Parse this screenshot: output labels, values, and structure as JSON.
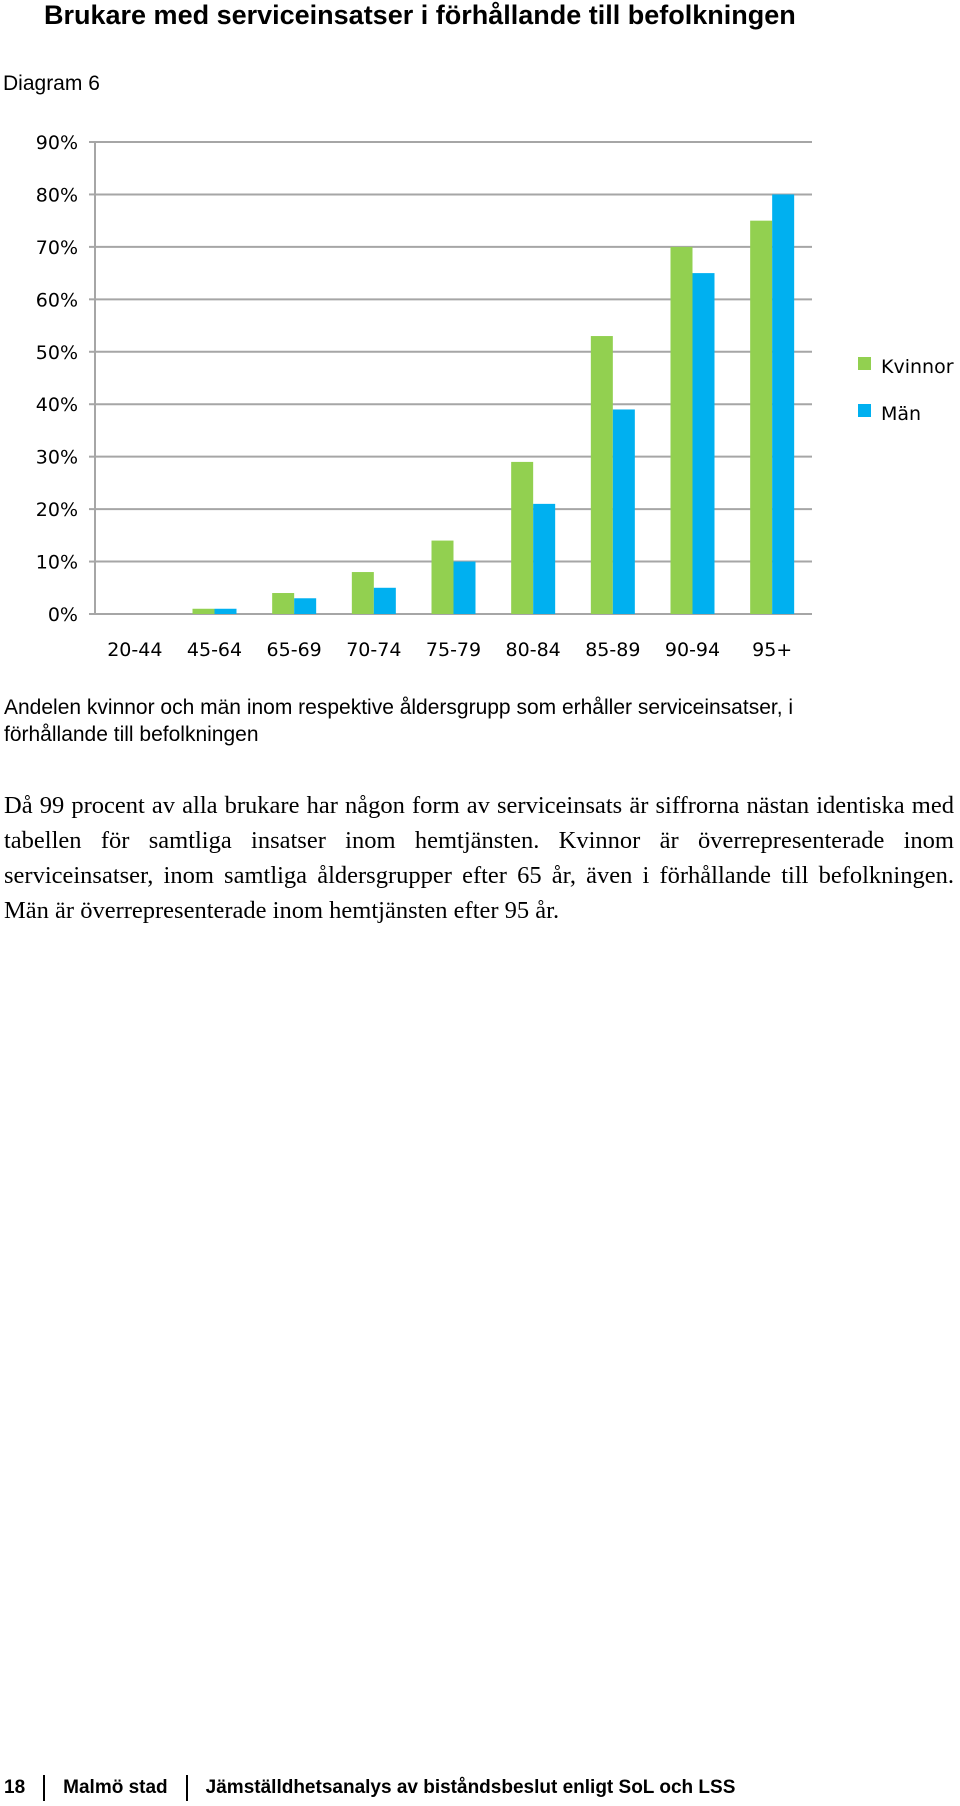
{
  "header": {
    "title": "Brukare med serviceinsatser i förhållande till befolkningen",
    "diagram_label": "Diagram 6"
  },
  "colors": {
    "kvinnor": "#92D050",
    "man": "#00B0F0",
    "grid": "#A6A6A6"
  },
  "chart_data": {
    "type": "bar",
    "categories": [
      "20-44",
      "45-64",
      "65-69",
      "70-74",
      "75-79",
      "80-84",
      "85-89",
      "90-94",
      "95+"
    ],
    "series": [
      {
        "name": "Kvinnor",
        "values": [
          0,
          1,
          4,
          8,
          14,
          29,
          53,
          70,
          75
        ]
      },
      {
        "name": "Män",
        "values": [
          0,
          1,
          3,
          5,
          10,
          21,
          39,
          65,
          80
        ]
      }
    ],
    "ylim": [
      0,
      90
    ],
    "yticks": [
      "0%",
      "10%",
      "20%",
      "30%",
      "40%",
      "50%",
      "60%",
      "70%",
      "80%",
      "90%"
    ],
    "grid": true,
    "legend": "right"
  },
  "caption": "Andelen kvinnor och män inom respektive åldersgrupp som erhåller serviceinsatser, i förhållande till befolkningen",
  "body_text": "Då 99 procent av alla brukare har någon form av serviceinsats är siffrorna nästan identiska med tabellen för samtliga insatser inom hemtjänsten. Kvinnor är överrepresenterade inom serviceinsatser, inom samtliga åldersgrupper efter 65 år, även i förhållande till befolkningen. Män är överrepresenterade inom hemtjänsten efter 95 år.",
  "footer": {
    "page_number": "18",
    "organization": "Malmö stad",
    "document_title": "Jämställdhetsanalys av biståndsbeslut enligt SoL och LSS"
  }
}
